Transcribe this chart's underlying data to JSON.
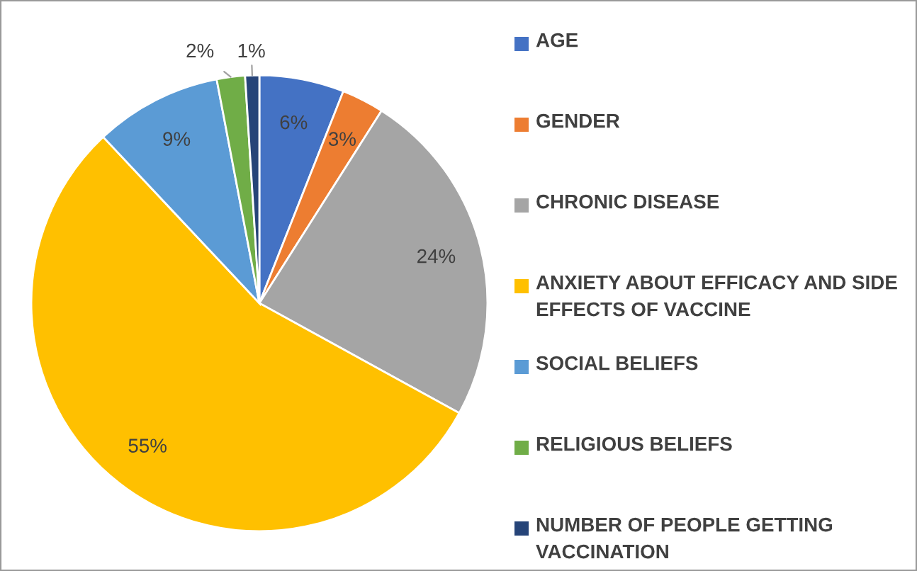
{
  "chart_data": {
    "type": "pie",
    "categories": [
      "AGE",
      "GENDER",
      "CHRONIC DISEASE",
      "ANXIETY ABOUT EFFICACY AND SIDE EFFECTS OF VACCINE",
      "SOCIAL BELIEFS",
      "RELIGIOUS BELIEFS",
      "NUMBER OF PEOPLE GETTING VACCINATION"
    ],
    "values": [
      6,
      3,
      24,
      55,
      9,
      2,
      1
    ],
    "colors": [
      "#4472c4",
      "#ed7d31",
      "#a5a5a5",
      "#ffc000",
      "#5b9bd5",
      "#70ad47",
      "#264478"
    ],
    "value_labels": [
      "6%",
      "3%",
      "24%",
      "55%",
      "9%",
      "2%",
      "1%"
    ],
    "legend": "right"
  }
}
